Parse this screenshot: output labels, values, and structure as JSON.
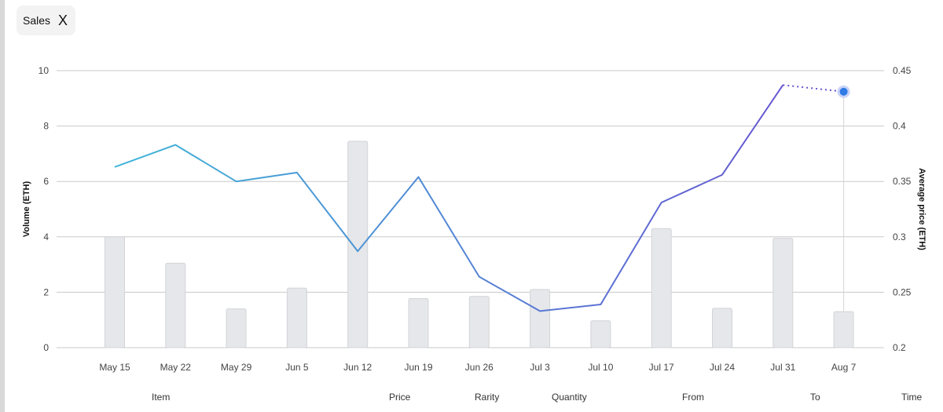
{
  "filter_chip": {
    "label": "Sales",
    "close_glyph": "X"
  },
  "footer_columns": [
    "Item",
    "Price",
    "Rarity",
    "Quantity",
    "From",
    "To",
    "Time"
  ],
  "colors": {
    "bar": "#e6e7ea",
    "bar_border": "#d2d4d8",
    "grid": "#c9c9c9",
    "line_start": "#3fb6d8",
    "line_end": "#6a4fd0",
    "marker": "#2f7ae5",
    "marker_halo": "#c9d3f7"
  },
  "chart_data": {
    "type": "bar",
    "categories": [
      "May 15",
      "May 22",
      "May 29",
      "Jun 5",
      "Jun 12",
      "Jun 19",
      "Jun 26",
      "Jul 3",
      "Jul 10",
      "Jul 17",
      "Jul 24",
      "Jul 31",
      "Aug 7"
    ],
    "series": [
      {
        "type": "bar",
        "axis": "left",
        "values": [
          4.0,
          3.05,
          1.4,
          2.15,
          7.45,
          1.77,
          1.85,
          2.1,
          0.97,
          4.3,
          1.42,
          3.95,
          1.3
        ]
      },
      {
        "type": "line",
        "axis": "right",
        "values": [
          0.363,
          0.383,
          0.35,
          0.358,
          0.287,
          0.354,
          0.264,
          0.233,
          0.239,
          0.331,
          0.356,
          0.437,
          0.431
        ],
        "last_segment_dotted": true
      }
    ],
    "ylabel": "Volume (ETH)",
    "y2label": "Average price (ETH)",
    "ylim": [
      0,
      10
    ],
    "y2lim": [
      0.2,
      0.45
    ],
    "yticks": [
      "10",
      "8",
      "6",
      "4",
      "2",
      "0"
    ],
    "y2ticks": [
      "0.45",
      "0.4",
      "0.35",
      "0.3",
      "0.25",
      "0.2"
    ],
    "grid": true,
    "highlighted_index": 12
  }
}
